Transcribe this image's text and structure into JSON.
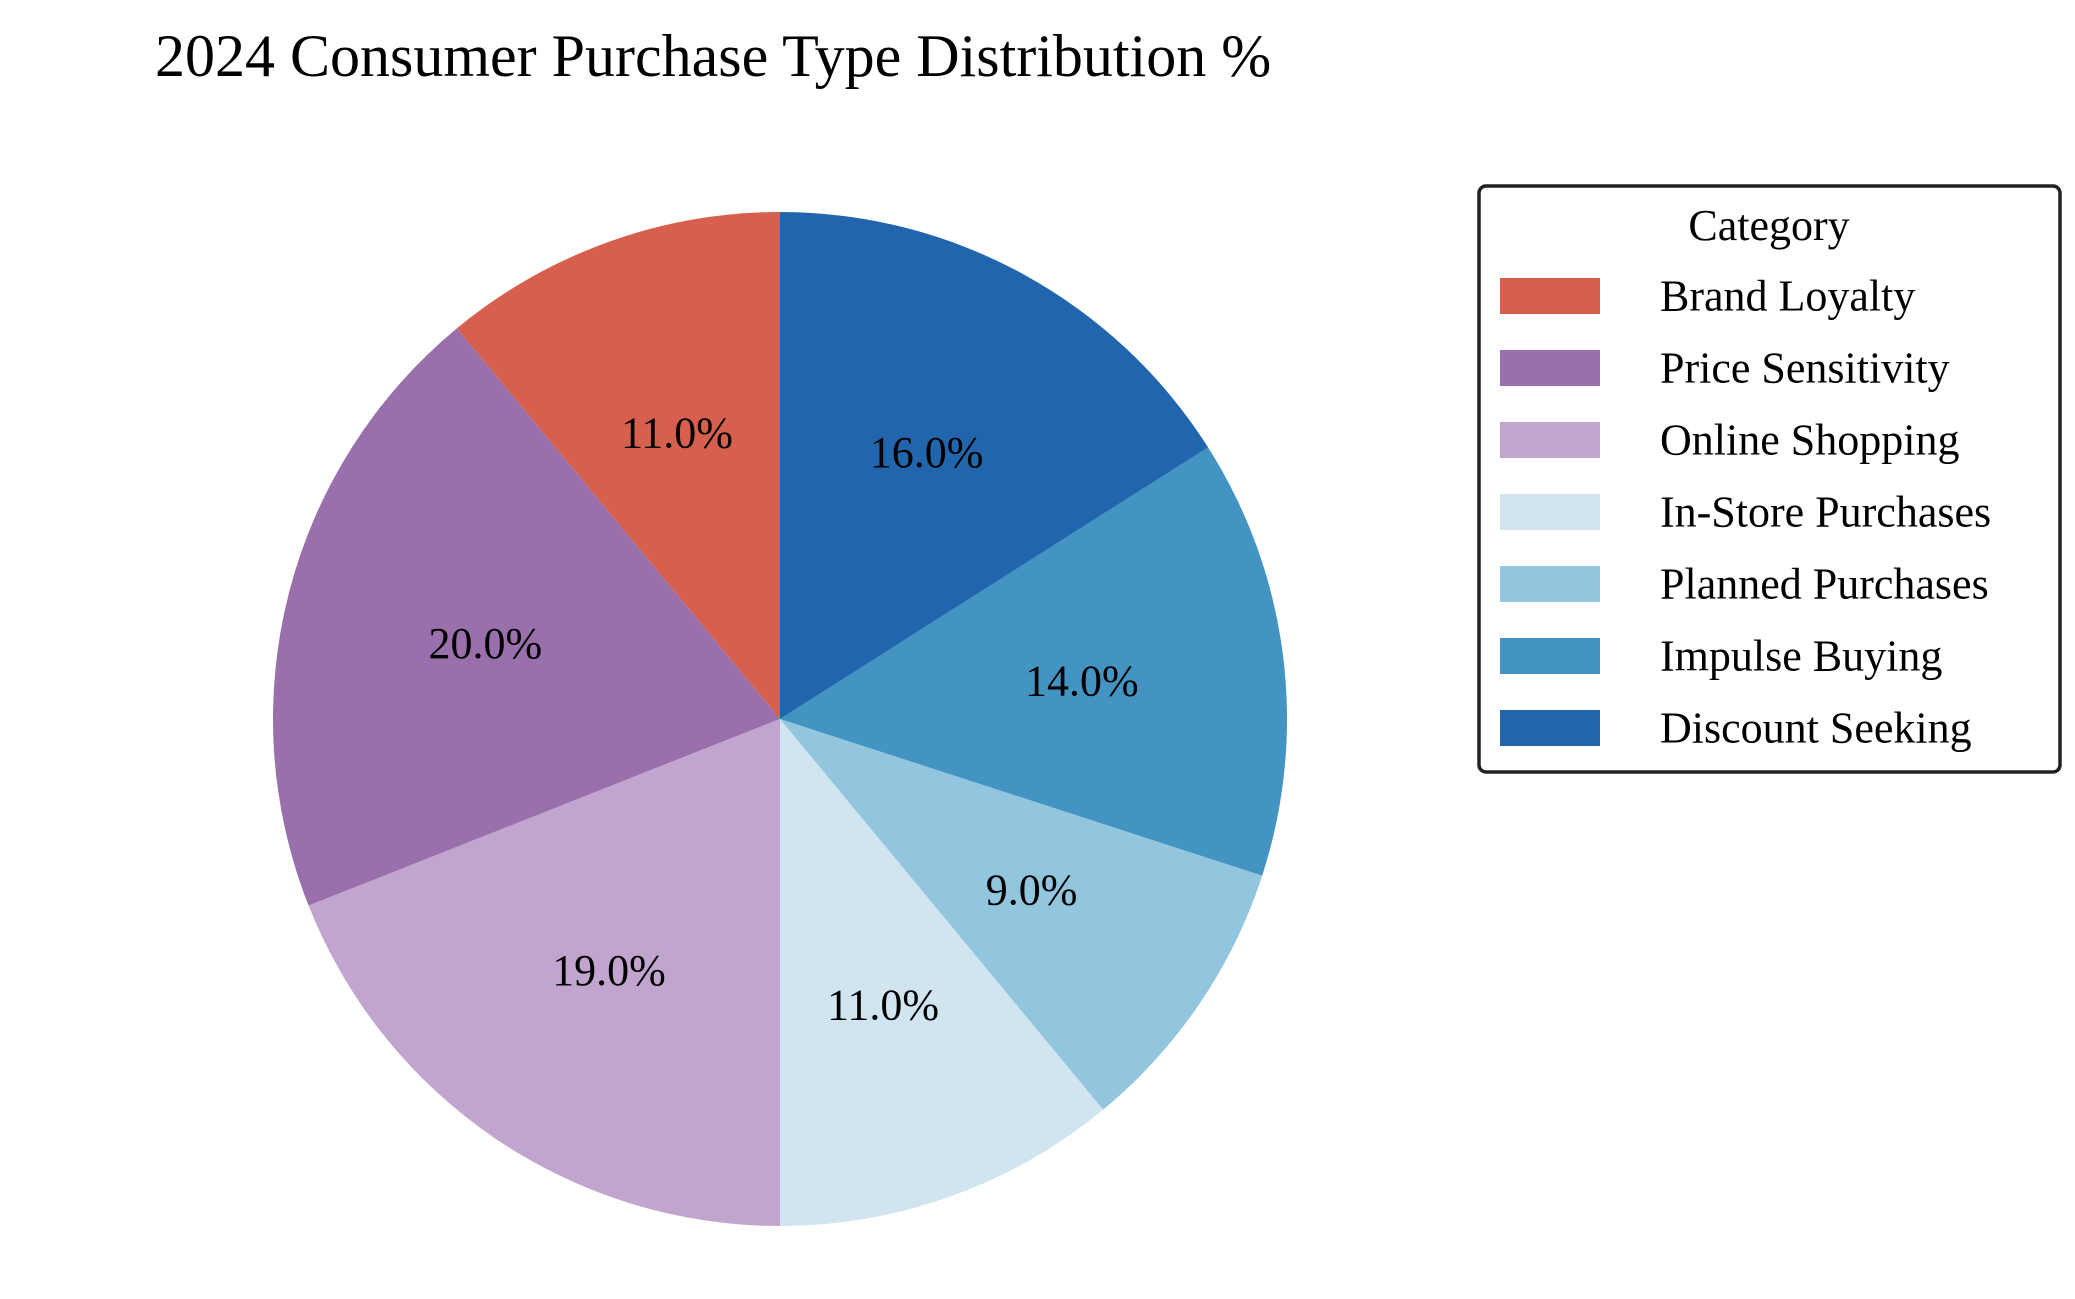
{
  "chart_data": {
    "type": "pie",
    "title": "2024 Consumer Purchase Type Distribution %",
    "legend_title": "Category",
    "legend_position": "right",
    "start_angle_deg": 90,
    "direction": "counterclockwise",
    "slices": [
      {
        "label": "Brand Loyalty",
        "value": 11.0,
        "display": "11.0%",
        "color": "#d6604d"
      },
      {
        "label": "Price Sensitivity",
        "value": 20.0,
        "display": "20.0%",
        "color": "#9970ab"
      },
      {
        "label": "Online Shopping",
        "value": 19.0,
        "display": "19.0%",
        "color": "#c2a5cf"
      },
      {
        "label": "In-Store Purchases",
        "value": 11.0,
        "display": "11.0%",
        "color": "#d1e5f0"
      },
      {
        "label": "Planned Purchases",
        "value": 9.0,
        "display": "9.0%",
        "color": "#92c5de"
      },
      {
        "label": "Impulse Buying",
        "value": 14.0,
        "display": "14.0%",
        "color": "#4393c3"
      },
      {
        "label": "Discount Seeking",
        "value": 16.0,
        "display": "16.0%",
        "color": "#2166ac"
      }
    ]
  }
}
